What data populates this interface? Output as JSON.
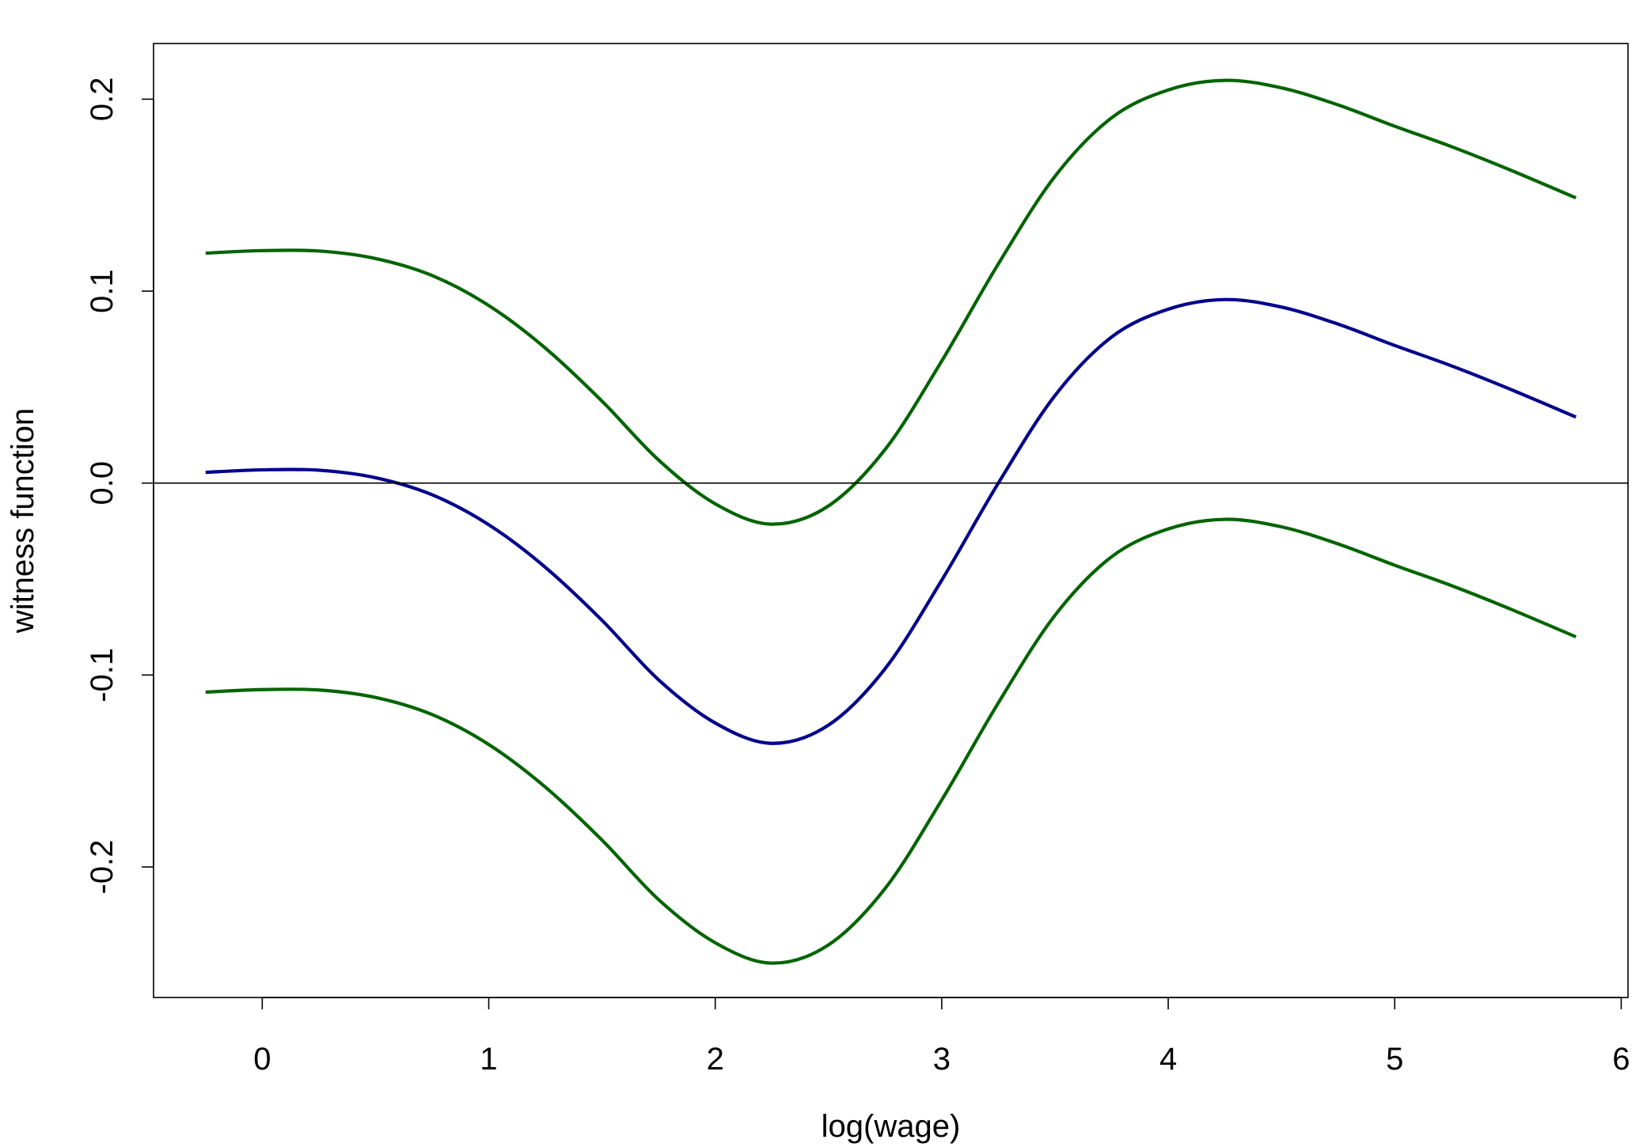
{
  "chart_data": {
    "type": "line",
    "xlabel": "log(wage)",
    "ylabel": "witness function",
    "xlim": [
      -0.48,
      6.03
    ],
    "ylim": [
      -0.268,
      0.229
    ],
    "grid": false,
    "x_ticks": [
      0,
      1,
      2,
      3,
      4,
      5,
      6
    ],
    "x_tick_labels": [
      "0",
      "1",
      "2",
      "3",
      "4",
      "5",
      "6"
    ],
    "y_ticks": [
      -0.2,
      -0.1,
      0.0,
      0.1,
      0.2
    ],
    "y_tick_labels": [
      "-0.2",
      "-0.1",
      "0.0",
      "0.1",
      "0.2"
    ],
    "hline": 0,
    "x": [
      -0.25,
      0,
      0.25,
      0.5,
      0.75,
      1.0,
      1.25,
      1.5,
      1.75,
      2.0,
      2.25,
      2.5,
      2.75,
      3.0,
      3.25,
      3.5,
      3.75,
      4.0,
      4.25,
      4.5,
      4.75,
      5.0,
      5.25,
      5.5,
      5.8
    ],
    "series": [
      {
        "color": "#00008B",
        "values": [
          0.0056,
          0.0069,
          0.0067,
          0.0028,
          -0.0061,
          -0.0217,
          -0.0439,
          -0.0715,
          -0.1025,
          -0.125,
          -0.1356,
          -0.1261,
          -0.0967,
          -0.0506,
          0.0,
          0.0456,
          0.0761,
          0.0906,
          0.0956,
          0.0917,
          0.0828,
          0.0717,
          0.0611,
          0.0494,
          0.0344
        ]
      },
      {
        "color": "#006400",
        "values": [
          0.1198,
          0.1211,
          0.1209,
          0.117,
          0.1081,
          0.0925,
          0.0703,
          0.0427,
          0.012,
          -0.0108,
          -0.0214,
          -0.0119,
          0.0175,
          0.0636,
          0.1142,
          0.1598,
          0.1903,
          0.2048,
          0.2098,
          0.2059,
          0.197,
          0.1859,
          0.1753,
          0.1636,
          0.1486
        ]
      },
      {
        "color": "#006400",
        "values": [
          -0.1089,
          -0.1076,
          -0.1078,
          -0.1117,
          -0.1206,
          -0.1362,
          -0.1584,
          -0.186,
          -0.217,
          -0.2395,
          -0.2501,
          -0.2406,
          -0.2112,
          -0.1651,
          -0.1145,
          -0.0689,
          -0.0384,
          -0.0239,
          -0.0189,
          -0.0228,
          -0.0317,
          -0.0428,
          -0.0534,
          -0.0651,
          -0.0801
        ]
      }
    ]
  }
}
